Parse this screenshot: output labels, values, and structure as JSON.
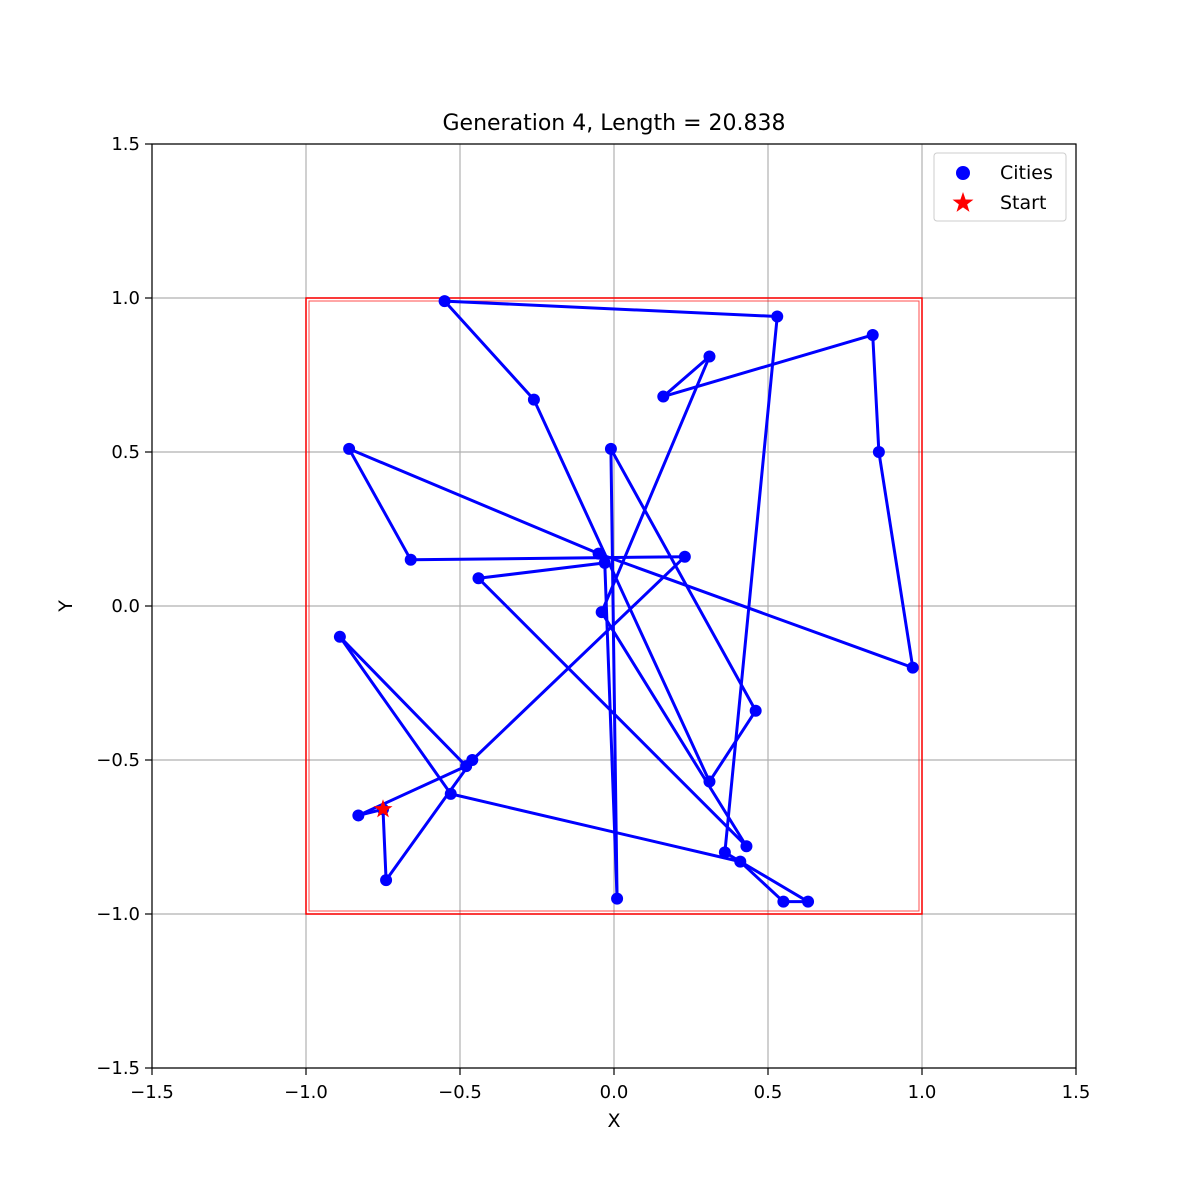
{
  "chart_data": {
    "type": "line",
    "title": "Generation 4, Length = 20.838",
    "xlabel": "X",
    "ylabel": "Y",
    "xlim": [
      -1.5,
      1.5
    ],
    "ylim": [
      -1.5,
      1.5
    ],
    "xticks": [
      -1.5,
      -1.0,
      -0.5,
      0.0,
      0.5,
      1.0,
      1.5
    ],
    "yticks": [
      -1.5,
      -1.0,
      -0.5,
      0.0,
      0.5,
      1.0,
      1.5
    ],
    "xtick_labels": [
      "−1.5",
      "−1.0",
      "−0.5",
      "0.0",
      "0.5",
      "1.0",
      "1.5"
    ],
    "ytick_labels": [
      "−1.5",
      "−1.0",
      "−0.5",
      "0.0",
      "0.5",
      "1.0",
      "1.5"
    ],
    "grid": true,
    "legend_position": "top-right",
    "legend": [
      "Cities",
      "Start"
    ],
    "colors": {
      "route": "#0000ff",
      "start": "#ff0000",
      "boundary": "#ff0000"
    },
    "boundary": {
      "x": [
        -1.0,
        1.0
      ],
      "y": [
        -1.0,
        1.0
      ]
    },
    "start": {
      "x": -0.75,
      "y": -0.66
    },
    "route": [
      [
        -0.75,
        -0.66
      ],
      [
        -0.83,
        -0.68
      ],
      [
        -0.48,
        -0.52
      ],
      [
        -0.89,
        -0.1
      ],
      [
        -0.53,
        -0.61
      ],
      [
        0.41,
        -0.83
      ],
      [
        0.55,
        -0.96
      ],
      [
        0.63,
        -0.96
      ],
      [
        0.36,
        -0.8
      ],
      [
        0.53,
        0.94
      ],
      [
        -0.55,
        0.99
      ],
      [
        -0.26,
        0.67
      ],
      [
        0.31,
        -0.57
      ],
      [
        0.46,
        -0.34
      ],
      [
        -0.01,
        0.51
      ],
      [
        0.01,
        -0.95
      ],
      [
        -0.03,
        0.14
      ],
      [
        -0.44,
        0.09
      ],
      [
        0.43,
        -0.78
      ],
      [
        -0.04,
        -0.02
      ],
      [
        0.31,
        0.81
      ],
      [
        0.16,
        0.68
      ],
      [
        0.84,
        0.88
      ],
      [
        0.86,
        0.5
      ],
      [
        0.97,
        -0.2
      ],
      [
        -0.05,
        0.17
      ],
      [
        -0.86,
        0.51
      ],
      [
        -0.66,
        0.15
      ],
      [
        0.23,
        0.16
      ],
      [
        -0.46,
        -0.5
      ],
      [
        -0.74,
        -0.89
      ],
      [
        -0.75,
        -0.66
      ]
    ]
  }
}
